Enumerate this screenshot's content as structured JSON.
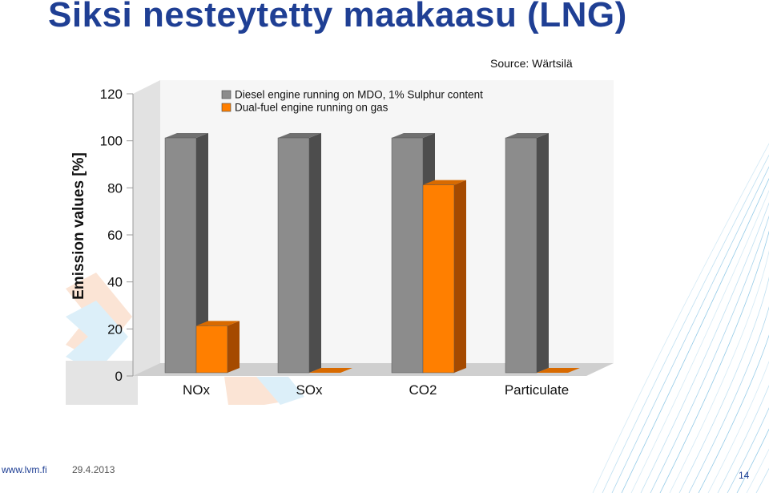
{
  "slide": {
    "title": "Siksi nesteytetty maakaasu (LNG)",
    "footer_url": "www.lvm.fi",
    "footer_date": "29.4.2013",
    "page_number": "14"
  },
  "colors": {
    "title": "#1f3f94",
    "diesel_front": "#8c8c8c",
    "diesel_side": "#4d4d4d",
    "gas_front": "#ff7f00",
    "gas_side": "#a54a00",
    "decor_lines": "#4fa8d8"
  },
  "chart_data": {
    "type": "bar",
    "title": "",
    "source": "Source: Wärtsilä",
    "xlabel": "",
    "ylabel": "Emission values [%]",
    "ylim": [
      0,
      120
    ],
    "yticks": [
      0,
      20,
      40,
      60,
      80,
      100,
      120
    ],
    "grid": false,
    "legend_position": "top",
    "style": "3d",
    "categories": [
      "NOx",
      "SOx",
      "CO2",
      "Particulate"
    ],
    "series": [
      {
        "name": "Diesel engine running on MDO, 1% Sulphur content",
        "color": "#8c8c8c",
        "values": [
          100,
          100,
          100,
          100
        ]
      },
      {
        "name": "Dual-fuel engine running on gas",
        "color": "#ff7f00",
        "values": [
          20,
          0,
          80,
          0
        ]
      }
    ]
  }
}
